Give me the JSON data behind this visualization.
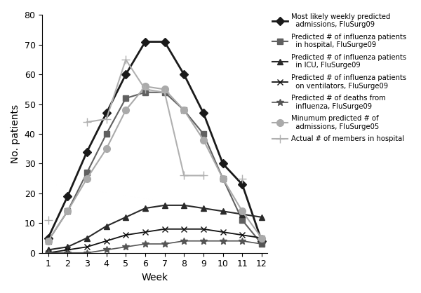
{
  "weeks": [
    1,
    2,
    3,
    4,
    5,
    6,
    7,
    8,
    9,
    10,
    11,
    12
  ],
  "series": [
    {
      "label": "Most likely weekly predicted\n  admissions, FluSurg09",
      "values": [
        5,
        19,
        34,
        47,
        60,
        71,
        71,
        60,
        47,
        30,
        23,
        4
      ],
      "color": "#1a1a1a",
      "marker": "D",
      "markersize": 6,
      "linewidth": 2.0,
      "linestyle": "-",
      "markerfacecolor": "#1a1a1a"
    },
    {
      "label": "Predicted # of influenza patients\n  in hospital, FluSurge09",
      "values": [
        4,
        14,
        27,
        40,
        52,
        54,
        54,
        48,
        40,
        25,
        11,
        3
      ],
      "color": "#606060",
      "marker": "s",
      "markersize": 6,
      "linewidth": 1.5,
      "linestyle": "-",
      "markerfacecolor": "#606060"
    },
    {
      "label": "Predicted # of influenza patients\n  in ICU, FluSurge09",
      "values": [
        1,
        2,
        5,
        9,
        12,
        15,
        16,
        16,
        15,
        14,
        13,
        12
      ],
      "color": "#2a2a2a",
      "marker": "^",
      "markersize": 6,
      "linewidth": 1.5,
      "linestyle": "-",
      "markerfacecolor": "#2a2a2a"
    },
    {
      "label": "Predicted # of influenza patients\n  on ventilators, FluSurge09",
      "values": [
        0,
        1,
        2,
        4,
        6,
        7,
        8,
        8,
        8,
        7,
        6,
        5
      ],
      "color": "#111111",
      "marker": "x",
      "markersize": 6,
      "linewidth": 1.3,
      "linestyle": "-",
      "markerfacecolor": "#111111"
    },
    {
      "label": "Predicted # of deaths from\n  influenza, FluSurge09",
      "values": [
        0,
        0,
        0,
        1,
        2,
        3,
        3,
        4,
        4,
        4,
        4,
        3
      ],
      "color": "#555555",
      "marker": "*",
      "markersize": 7,
      "linewidth": 1.2,
      "linestyle": "-",
      "markerfacecolor": "#555555"
    },
    {
      "label": "Minumum predicted # of\n  admissions, FluSurge05",
      "values": [
        4,
        14,
        25,
        35,
        48,
        56,
        55,
        48,
        38,
        25,
        14,
        5
      ],
      "color": "#aaaaaa",
      "marker": "o",
      "markersize": 7,
      "linewidth": 1.5,
      "linestyle": "-",
      "markerfacecolor": "#aaaaaa"
    },
    {
      "label": "Actual # of members in hospital",
      "values": [
        11,
        null,
        44,
        45,
        65,
        55,
        54,
        26,
        26,
        null,
        25,
        null
      ],
      "color": "#b0b0b0",
      "marker": "+",
      "markersize": 9,
      "linewidth": 1.5,
      "linestyle": "-",
      "markerfacecolor": "#b0b0b0"
    }
  ],
  "xlabel": "Week",
  "ylabel": "No. patients",
  "ylim": [
    0,
    80
  ],
  "yticks": [
    0,
    10,
    20,
    30,
    40,
    50,
    60,
    70,
    80
  ],
  "xlim": [
    0.7,
    12.3
  ],
  "xticks": [
    1,
    2,
    3,
    4,
    5,
    6,
    7,
    8,
    9,
    10,
    11,
    12
  ],
  "background_color": "#ffffff",
  "legend_fontsize": 7.2,
  "axis_fontsize": 10,
  "figwidth": 6.0,
  "figheight": 4.18,
  "dpi": 100
}
